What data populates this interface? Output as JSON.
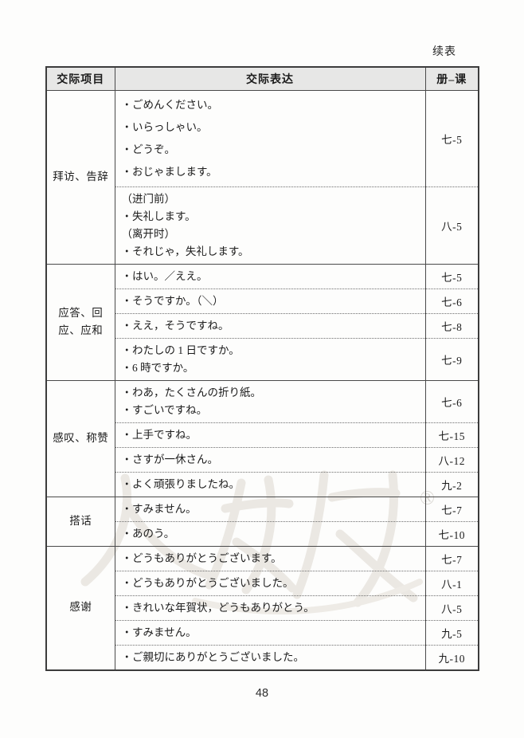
{
  "page": {
    "continuation_label": "续表",
    "page_number": "48"
  },
  "watermark": {
    "registered_mark": "®",
    "brand": "人教版"
  },
  "table": {
    "headers": [
      {
        "label": "交际项目"
      },
      {
        "label": "交际表达"
      },
      {
        "label": "册–课"
      }
    ],
    "sections": [
      {
        "category": "拜访、告辞",
        "rows": [
          {
            "lines": [
              "・ごめんください。",
              "・いらっしゃい。",
              "・どうぞ。",
              "・おじゃまします。"
            ],
            "ref": "七-5",
            "tall": true
          },
          {
            "lines": [
              "（进门前）",
              "・失礼します。",
              "（离开时）",
              "・それじゃ，失礼します。"
            ],
            "ref": "八-5"
          }
        ]
      },
      {
        "category": "应答、回应、应和",
        "rows": [
          {
            "lines": [
              "・はい。／ええ。"
            ],
            "ref": "七-5"
          },
          {
            "lines": [
              "・そうですか。（＼）"
            ],
            "ref": "七-6"
          },
          {
            "lines": [
              "・ええ，そうですね。"
            ],
            "ref": "七-8"
          },
          {
            "lines": [
              "・わたしの 1 日ですか。",
              "・6 時ですか。"
            ],
            "ref": "七-9"
          }
        ]
      },
      {
        "category": "感叹、称赞",
        "rows": [
          {
            "lines": [
              "・わあ，たくさんの折り紙。",
              "・すごいですね。"
            ],
            "ref": "七-6"
          },
          {
            "lines": [
              "・上手ですね。"
            ],
            "ref": "七-15"
          },
          {
            "lines": [
              "・さすが一休さん。"
            ],
            "ref": "八-12"
          },
          {
            "lines": [
              "・よく頑張りましたね。"
            ],
            "ref": "九-2"
          }
        ]
      },
      {
        "category": "搭话",
        "rows": [
          {
            "lines": [
              "・すみません。"
            ],
            "ref": "七-7"
          },
          {
            "lines": [
              "・あのう。"
            ],
            "ref": "七-10"
          }
        ]
      },
      {
        "category": "感谢",
        "rows": [
          {
            "lines": [
              "・どうもありがとうございます。"
            ],
            "ref": "七-7"
          },
          {
            "lines": [
              "・どうもありがとうございました。"
            ],
            "ref": "八-1"
          },
          {
            "lines": [
              "・きれいな年賀状，どうもありがとう。"
            ],
            "ref": "八-5"
          },
          {
            "lines": [
              "・すみません。"
            ],
            "ref": "九-5"
          },
          {
            "lines": [
              "・ご親切にありがとうございました。"
            ],
            "ref": "九-10"
          }
        ]
      }
    ]
  }
}
